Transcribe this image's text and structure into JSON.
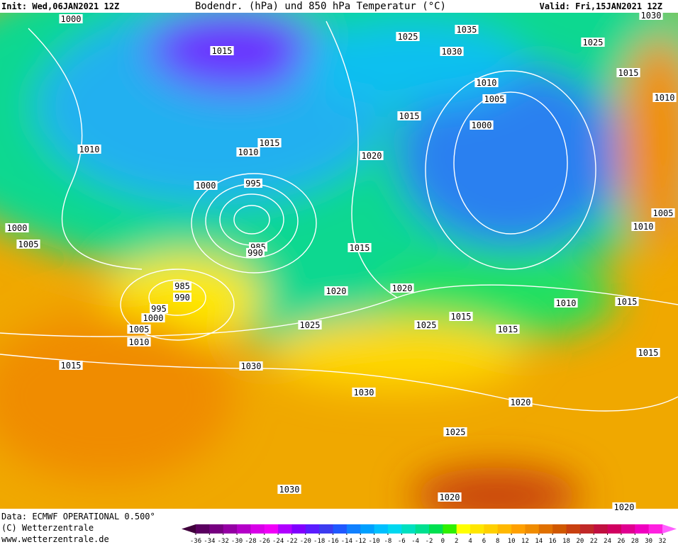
{
  "header": {
    "init": "Init: Wed,06JAN2021 12Z",
    "title": "Bodendr. (hPa) und 850 hPa Temperatur (°C)",
    "valid": "Valid: Fri,15JAN2021 12Z"
  },
  "isobar_labels": [
    1000,
    1015,
    1025,
    1035,
    1030,
    1025,
    1030,
    1015,
    1010,
    1005,
    1010,
    1015,
    1000,
    1010,
    1010,
    1015,
    1020,
    995,
    1000,
    1005,
    1010,
    1000,
    1005,
    985,
    990,
    1015,
    1020,
    1020,
    985,
    990,
    995,
    1000,
    1005,
    1010,
    1025,
    1015,
    1025,
    1015,
    1010,
    1015,
    1015,
    1015,
    1030,
    1030,
    1020,
    1025,
    1030,
    1020,
    1020
  ],
  "footer": {
    "data": "Data: ECMWF OPERATIONAL 0.500°",
    "copyright": "(C) Wetterzentrale",
    "url": "www.wetterzentrale.de"
  },
  "colorbar": {
    "ticks": [
      -36,
      -34,
      -32,
      -30,
      -28,
      -26,
      -24,
      -22,
      -20,
      -18,
      -16,
      -14,
      -12,
      -10,
      -8,
      -6,
      -4,
      -2,
      0,
      2,
      4,
      6,
      8,
      10,
      12,
      14,
      16,
      18,
      20,
      22,
      24,
      26,
      28,
      30,
      32
    ],
    "colors": [
      "#40003c",
      "#5a0060",
      "#760080",
      "#9400a4",
      "#b400c8",
      "#d800e8",
      "#f000f8",
      "#b000ff",
      "#8000ff",
      "#5a1cff",
      "#3c3cf0",
      "#2058ff",
      "#1080ff",
      "#00a0ff",
      "#00c0ff",
      "#00d8f0",
      "#00e0c0",
      "#00e090",
      "#00e050",
      "#30f000",
      "#ffff00",
      "#ffe600",
      "#ffd000",
      "#ffb800",
      "#ffa000",
      "#f08c00",
      "#e07000",
      "#d05800",
      "#c84010",
      "#c02828",
      "#c01040",
      "#d00060",
      "#e00090",
      "#f000c0",
      "#ff20e0",
      "#ff60ff"
    ]
  }
}
